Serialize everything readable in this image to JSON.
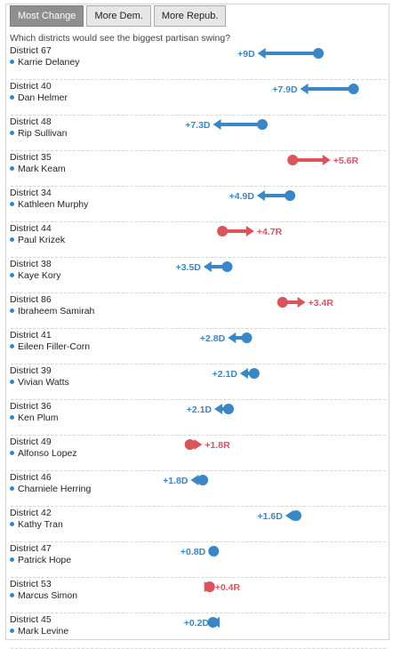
{
  "tabs": [
    {
      "label": "Most Change",
      "active": true
    },
    {
      "label": "More Dem.",
      "active": false
    },
    {
      "label": "More Repub.",
      "active": false
    }
  ],
  "subtitle": "Which districts would see the biggest partisan swing?",
  "colors": {
    "dem": "#3a87c8",
    "rep": "#d9545b"
  },
  "chart_data": {
    "type": "dot-arrow",
    "rows": [
      {
        "district": "District 67",
        "candidate": "Karrie Delaney",
        "label": "+9D",
        "party": "D",
        "change": 9.0
      },
      {
        "district": "District 40",
        "candidate": "Dan Helmer",
        "label": "+7.9D",
        "party": "D",
        "change": 7.9
      },
      {
        "district": "District 48",
        "candidate": "Rip Sullivan",
        "label": "+7.3D",
        "party": "D",
        "change": 7.3
      },
      {
        "district": "District 35",
        "candidate": "Mark Keam",
        "label": "+5.6R",
        "party": "R",
        "change": 5.6
      },
      {
        "district": "District 34",
        "candidate": "Kathleen Murphy",
        "label": "+4.9D",
        "party": "D",
        "change": 4.9
      },
      {
        "district": "District 44",
        "candidate": "Paul Krizek",
        "label": "+4.7R",
        "party": "R",
        "change": 4.7
      },
      {
        "district": "District 38",
        "candidate": "Kaye Kory",
        "label": "+3.5D",
        "party": "D",
        "change": 3.5
      },
      {
        "district": "District 86",
        "candidate": "Ibraheem Samirah",
        "label": "+3.4R",
        "party": "R",
        "change": 3.4
      },
      {
        "district": "District 41",
        "candidate": "Eileen Filler-Corn",
        "label": "+2.8D",
        "party": "D",
        "change": 2.8
      },
      {
        "district": "District 39",
        "candidate": "Vivian Watts",
        "label": "+2.1D",
        "party": "D",
        "change": 2.1
      },
      {
        "district": "District 36",
        "candidate": "Ken Plum",
        "label": "+2.1D",
        "party": "D",
        "change": 2.1
      },
      {
        "district": "District 49",
        "candidate": "Alfonso Lopez",
        "label": "+1.8R",
        "party": "R",
        "change": 1.8
      },
      {
        "district": "District 46",
        "candidate": "Charniele Herring",
        "label": "+1.8D",
        "party": "D",
        "change": 1.8
      },
      {
        "district": "District 42",
        "candidate": "Kathy Tran",
        "label": "+1.6D",
        "party": "D",
        "change": 1.6
      },
      {
        "district": "District 47",
        "candidate": "Patrick Hope",
        "label": "+0.8D",
        "party": "D",
        "change": 0.8
      },
      {
        "district": "District 53",
        "candidate": "Marcus Simon",
        "label": "+0.4R",
        "party": "R",
        "change": 0.4
      },
      {
        "district": "District 45",
        "candidate": "Mark Levine",
        "label": "+0.2D",
        "party": "D",
        "change": 0.2
      }
    ],
    "start_margin": [
      15.8,
      21.0,
      7.5,
      12.0,
      11.6,
      1.6,
      2.3,
      10.5,
      5.2,
      6.3,
      2.5,
      -3.2,
      -1.3,
      12.5,
      0.3,
      -0.3,
      0.2
    ]
  }
}
